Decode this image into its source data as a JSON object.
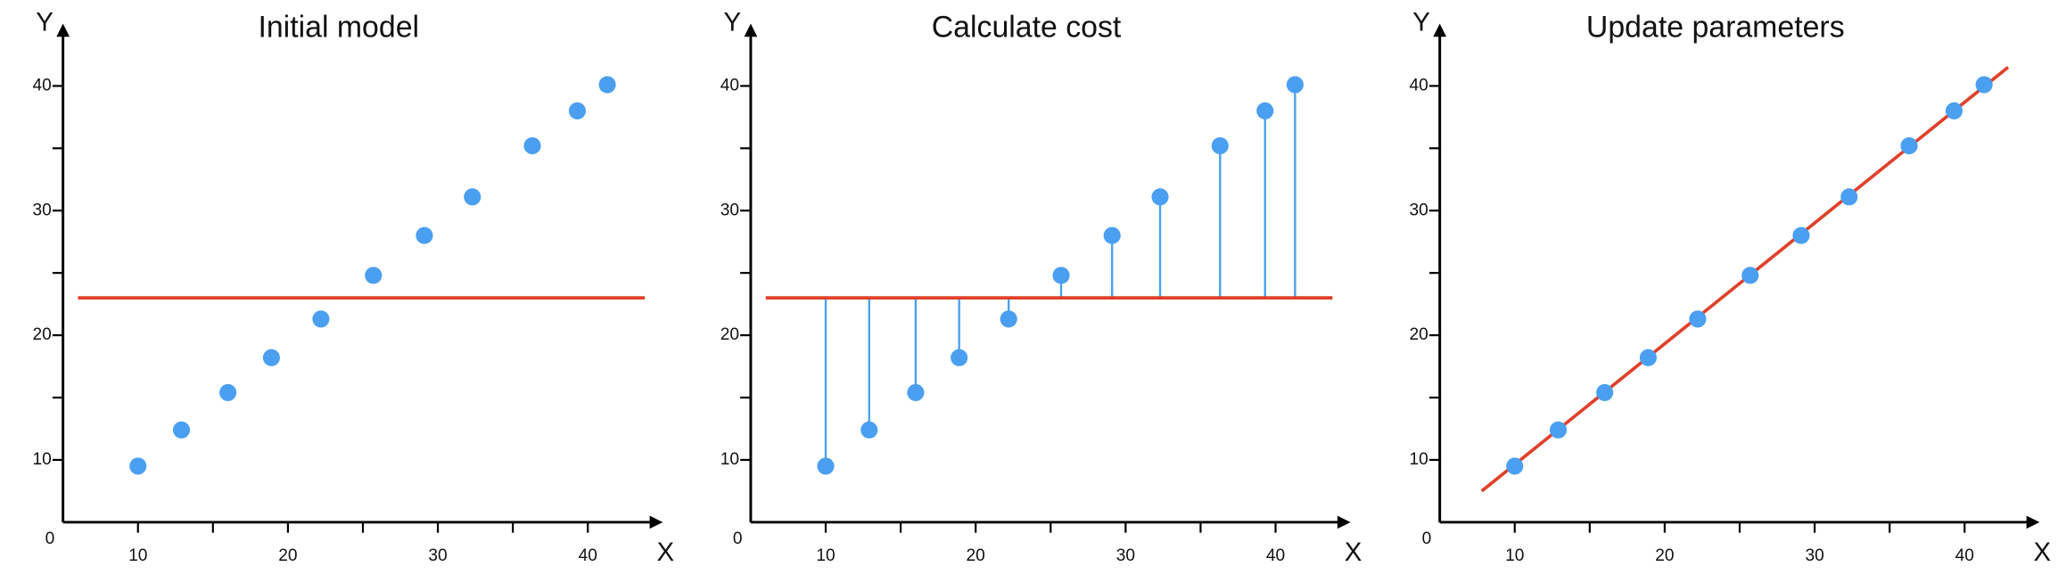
{
  "chart_data": [
    {
      "type": "scatter",
      "title": "Initial model",
      "xlabel": "X",
      "ylabel": "Y",
      "origin_label": "0",
      "xlim": [
        5,
        45
      ],
      "ylim": [
        5,
        45
      ],
      "xticks": [
        10,
        20,
        30,
        40
      ],
      "yticks": [
        10,
        20,
        30,
        40
      ],
      "xminor": [
        15,
        25,
        35
      ],
      "yminor": [
        15,
        25,
        35
      ],
      "x": [
        10,
        12.9,
        16.0,
        18.9,
        22.2,
        25.7,
        29.1,
        32.3,
        36.3,
        39.3,
        41.3
      ],
      "values": [
        9.5,
        12.4,
        15.4,
        18.2,
        21.3,
        24.8,
        28.0,
        31.1,
        35.2,
        38.0,
        40.1
      ],
      "color": "#4a9ff0",
      "residuals": false,
      "line": {
        "color": "#e0402a",
        "x": [
          6,
          43.8
        ],
        "y": [
          23,
          23
        ]
      }
    },
    {
      "type": "scatter",
      "title": "Calculate cost",
      "xlabel": "X",
      "ylabel": "Y",
      "origin_label": "0",
      "xlim": [
        5,
        45
      ],
      "ylim": [
        5,
        45
      ],
      "xticks": [
        10,
        20,
        30,
        40
      ],
      "yticks": [
        10,
        20,
        30,
        40
      ],
      "xminor": [
        15,
        25,
        35
      ],
      "yminor": [
        15,
        25,
        35
      ],
      "x": [
        10,
        12.9,
        16.0,
        18.9,
        22.2,
        25.7,
        29.1,
        32.3,
        36.3,
        39.3,
        41.3
      ],
      "values": [
        9.5,
        12.4,
        15.4,
        18.2,
        21.3,
        24.8,
        28.0,
        31.1,
        35.2,
        38.0,
        40.1
      ],
      "color": "#4a9ff0",
      "residuals": true,
      "line": {
        "color": "#e0402a",
        "x": [
          6,
          43.8
        ],
        "y": [
          23,
          23
        ]
      }
    },
    {
      "type": "scatter",
      "title": "Update parameters",
      "xlabel": "X",
      "ylabel": "Y",
      "origin_label": "0",
      "xlim": [
        5,
        45
      ],
      "ylim": [
        5,
        45
      ],
      "xticks": [
        10,
        20,
        30,
        40
      ],
      "yticks": [
        10,
        20,
        30,
        40
      ],
      "xminor": [
        15,
        25,
        35
      ],
      "yminor": [
        15,
        25,
        35
      ],
      "x": [
        10,
        12.9,
        16.0,
        18.9,
        22.2,
        25.7,
        29.1,
        32.3,
        36.3,
        39.3,
        41.3
      ],
      "values": [
        9.5,
        12.4,
        15.4,
        18.2,
        21.3,
        24.8,
        28.0,
        31.1,
        35.2,
        38.0,
        40.1
      ],
      "color": "#4a9ff0",
      "residuals": false,
      "line": {
        "color": "#e0402a",
        "x": [
          7.8,
          42.9
        ],
        "y": [
          7.5,
          41.5
        ]
      }
    }
  ]
}
